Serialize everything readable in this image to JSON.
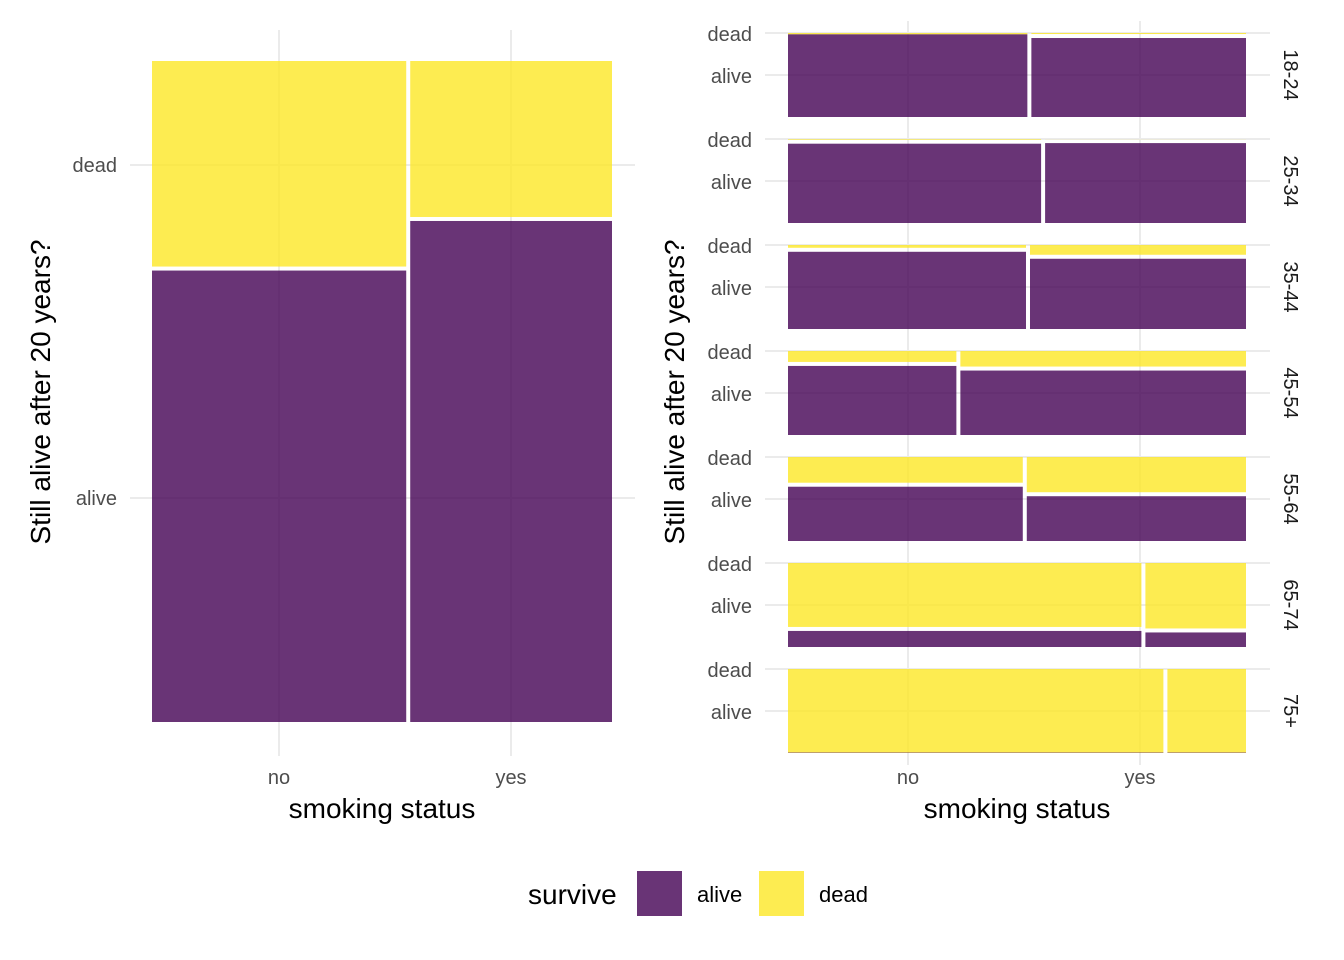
{
  "colors": {
    "alive": "#440154",
    "dead": "#fde725",
    "grid": "#ebebeb"
  },
  "chart_data": [
    {
      "type": "mosaic",
      "title": "",
      "xlabel": "smoking status",
      "ylabel": "Still alive after 20 years?",
      "x_categories": [
        "no",
        "yes"
      ],
      "y_categories": [
        "alive",
        "dead"
      ],
      "x_proportions": [
        0.557,
        0.443
      ],
      "alive_proportion": [
        0.686,
        0.761
      ],
      "grid": true
    },
    {
      "type": "mosaic",
      "title": "",
      "xlabel": "smoking status",
      "ylabel": "Still alive after 20 years?",
      "x_categories": [
        "no",
        "yes"
      ],
      "y_categories": [
        "alive",
        "dead"
      ],
      "grid": true,
      "facets": [
        {
          "label": "18-24",
          "no_width_share": 0.527,
          "alive_proportion": [
            0.984,
            0.964
          ]
        },
        {
          "label": "25-34",
          "no_width_share": 0.557,
          "alive_proportion": [
            0.968,
            0.975
          ]
        },
        {
          "label": "35-44",
          "no_width_share": 0.524,
          "alive_proportion": [
            0.943,
            0.86
          ]
        },
        {
          "label": "45-54",
          "no_width_share": 0.372,
          "alive_proportion": [
            0.846,
            0.791
          ]
        },
        {
          "label": "55-64",
          "no_width_share": 0.517,
          "alive_proportion": [
            0.67,
            0.557
          ]
        },
        {
          "label": "65-74",
          "no_width_share": 0.776,
          "alive_proportion": [
            0.215,
            0.197
          ]
        },
        {
          "label": "75+",
          "no_width_share": 0.824,
          "alive_proportion": [
            0.005,
            0.005
          ]
        }
      ]
    }
  ],
  "legend": {
    "title": "survive",
    "placement": "bottom",
    "items": [
      {
        "label": "alive",
        "color": "#440154"
      },
      {
        "label": "dead",
        "color": "#fde725"
      }
    ]
  }
}
